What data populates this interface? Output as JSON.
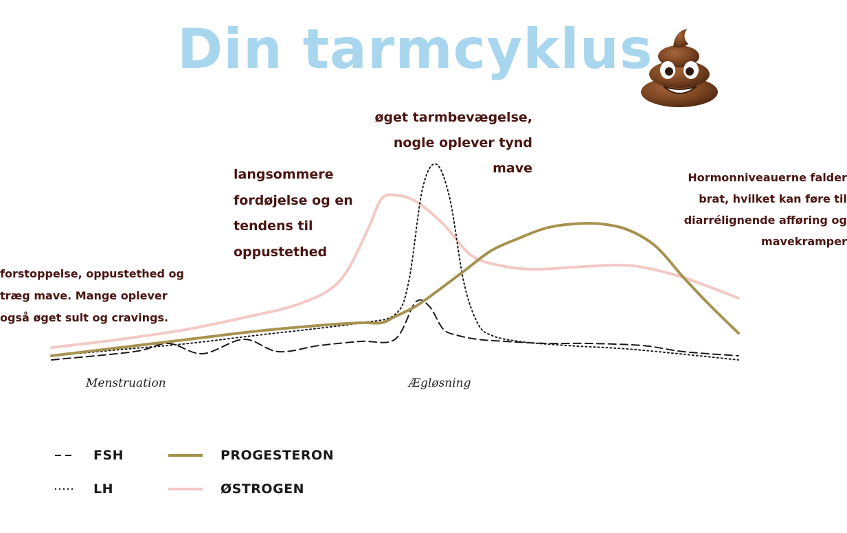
{
  "title": "Din tarmcyklus",
  "emoji_icon": "pile-of-poo-icon",
  "colors": {
    "title": "#a9d6ef",
    "annotation_text": "#4a1512",
    "fsh": "#1a1a1a",
    "lh": "#1a1a1a",
    "progesteron": "#a6924f",
    "ostrogen": "#f3c8c5"
  },
  "annotations": [
    "forstoppelse, oppustethed og\ntræg mave. Mange oplever\nogså øget sult og cravings.",
    "langsommere\nfordøjelse og en\ntendens til\noppustethed",
    "øget tarmbevægelse,\nnogle oplever tynd\nmave",
    "Hormonniveauerne falder\nbrat, hvilket kan føre til\ndiarrélignende afføring og\nmavekramper"
  ],
  "chart_data": {
    "type": "line",
    "xlim": [
      0,
      100
    ],
    "ylim": [
      0,
      100
    ],
    "x_labels": [
      {
        "x": 5,
        "text": "Menstruation"
      },
      {
        "x": 52,
        "text": "Ægløsning"
      }
    ],
    "grid": false,
    "legend_position": "bottom-left",
    "series": [
      {
        "name": "FSH",
        "style": "dashed",
        "x": [
          0,
          12,
          17,
          22,
          28,
          33,
          39,
          45,
          50,
          53,
          55,
          57,
          59,
          62,
          66,
          72,
          78,
          86,
          92,
          100
        ],
        "y": [
          2,
          6,
          10,
          5,
          12,
          6,
          9,
          11,
          12,
          30,
          28,
          17,
          14,
          12,
          11,
          10,
          10,
          9,
          6,
          4
        ]
      },
      {
        "name": "LH",
        "style": "dotted",
        "x": [
          0,
          10,
          20,
          30,
          38,
          45,
          50,
          52,
          54,
          56,
          58,
          60,
          62,
          64,
          68,
          75,
          85,
          100
        ],
        "y": [
          4,
          7,
          10,
          14,
          17,
          20,
          24,
          40,
          85,
          97,
          80,
          40,
          20,
          14,
          11,
          9,
          7,
          2
        ]
      },
      {
        "name": "PROGESTERON",
        "style": "solid",
        "x": [
          0,
          10,
          20,
          30,
          40,
          45,
          48,
          50,
          53,
          56,
          60,
          64,
          68,
          72,
          76,
          80,
          84,
          88,
          92,
          96,
          100
        ],
        "y": [
          4,
          8,
          12,
          16,
          19,
          20,
          20,
          23,
          28,
          35,
          45,
          55,
          61,
          66,
          68,
          68,
          65,
          57,
          42,
          28,
          15
        ]
      },
      {
        "name": "ØSTROGEN",
        "style": "solid-light",
        "x": [
          0,
          10,
          20,
          30,
          35,
          40,
          43,
          46,
          48,
          50,
          53,
          57,
          61,
          65,
          70,
          76,
          82,
          86,
          92,
          100
        ],
        "y": [
          8,
          12,
          17,
          24,
          28,
          35,
          45,
          65,
          80,
          82,
          79,
          68,
          53,
          48,
          46,
          47,
          48,
          47,
          42,
          32
        ]
      }
    ]
  },
  "legend": [
    {
      "label": "FSH",
      "style": "dashed"
    },
    {
      "label": "PROGESTERON",
      "style": "solid"
    },
    {
      "label": "LH",
      "style": "dotted"
    },
    {
      "label": "ØSTROGEN",
      "style": "solid-light"
    }
  ]
}
